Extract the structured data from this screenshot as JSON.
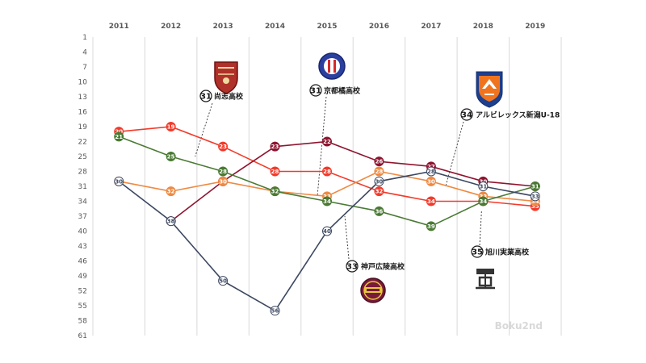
{
  "chart_data": {
    "type": "line",
    "title": "",
    "xlabel": "",
    "ylabel": "",
    "x": [
      "2011",
      "2012",
      "2013",
      "2014",
      "2015",
      "2016",
      "2017",
      "2018",
      "2019"
    ],
    "y_ticks": [
      1,
      4,
      7,
      10,
      13,
      16,
      19,
      22,
      25,
      28,
      31,
      34,
      37,
      40,
      43,
      46,
      49,
      52,
      55,
      58,
      61
    ],
    "ylim": [
      1,
      61
    ],
    "y_inverted": true,
    "x_grid": true,
    "legend": "none",
    "series": [
      {
        "color": "#f23b2b",
        "values": [
          20,
          19,
          23,
          28,
          28,
          32,
          34,
          34,
          35
        ]
      },
      {
        "color": "#8e1530",
        "values": [
          null,
          38,
          30,
          23,
          22,
          26,
          27,
          30,
          31
        ]
      },
      {
        "color": "#ee8a43",
        "values": [
          30,
          32,
          30,
          32,
          33,
          28,
          30,
          33,
          34
        ]
      },
      {
        "color": "#4a7a34",
        "values": [
          21,
          25,
          28,
          32,
          34,
          36,
          39,
          34,
          31
        ]
      },
      {
        "color": "#3c4861",
        "values": [
          30,
          38,
          50,
          56,
          40,
          30,
          28,
          31,
          33
        ]
      }
    ]
  },
  "annotations": [
    {
      "number": "31",
      "label": "尚志高校",
      "logo": "shoshi-crest-icon"
    },
    {
      "number": "31",
      "label": "京都橘高校",
      "logo": "kyoto-tachibana-crest-icon"
    },
    {
      "number": "34",
      "label": "アルビレックス新潟U-18",
      "logo": "albirex-crest-icon"
    },
    {
      "number": "33",
      "label": "神戸広陵高校",
      "logo": "kobe-koryo-crest-icon"
    },
    {
      "number": "35",
      "label": "旭川実業高校",
      "logo": "asahikawa-jitsugyo-crest-icon"
    }
  ],
  "watermark": "Boku2nd"
}
